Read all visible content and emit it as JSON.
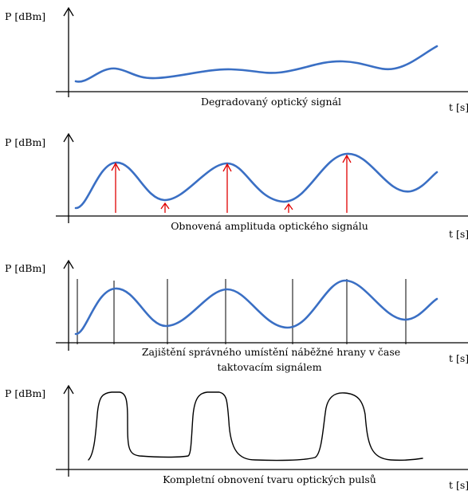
{
  "panels": [
    {
      "y_label": "P [dBm]",
      "x_label": "t [s]",
      "caption_lines": [
        "Degradovaný optický signál"
      ]
    },
    {
      "y_label": "P [dBm]",
      "x_label": "t [s]",
      "caption_lines": [
        "Obnovená amplituda optického signálu"
      ]
    },
    {
      "y_label": "P [dBm]",
      "x_label": "t [s]",
      "caption_lines": [
        "Zajištění správného umístění náběžné hrany v čase",
        "taktovacím signálem"
      ]
    },
    {
      "y_label": "P [dBm]",
      "x_label": "t [s]",
      "caption_lines": [
        "Kompletní obnovení tvaru optických pulsů"
      ]
    }
  ],
  "colors": {
    "signal": "#3a6fc4",
    "restored_pulse": "#000000",
    "amplitude_arrows": "#e00000",
    "clock_lines": "#000000"
  }
}
